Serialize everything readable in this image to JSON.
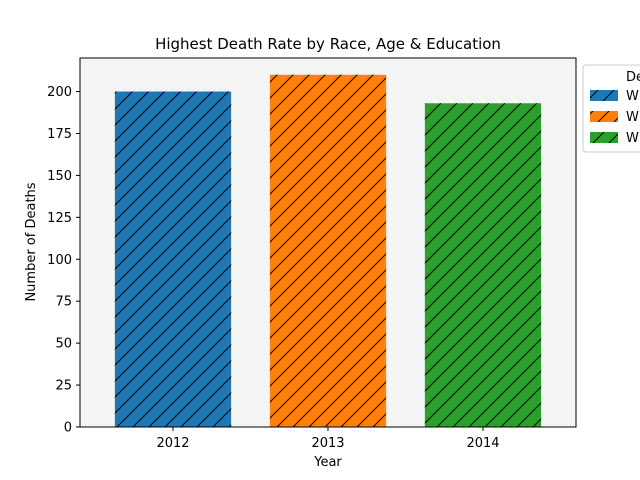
{
  "chart_data": {
    "type": "bar",
    "title": "Highest Death Rate by Race, Age & Education",
    "xlabel": "Year",
    "ylabel": "Number of Deaths",
    "categories": [
      "2012",
      "2013",
      "2014"
    ],
    "values": [
      200,
      210,
      193
    ],
    "colors": [
      "#1f77b4",
      "#ff7f0e",
      "#2ca02c"
    ],
    "hatch": "/",
    "ylim": [
      0,
      220
    ],
    "yticks": [
      0,
      25,
      50,
      75,
      100,
      125,
      150,
      175,
      200
    ],
    "axes_background": "#f4f4f4",
    "grid": false,
    "legend": {
      "placement": "outside-top-right",
      "title": "De",
      "entries": [
        "W",
        "W",
        "W"
      ]
    }
  }
}
